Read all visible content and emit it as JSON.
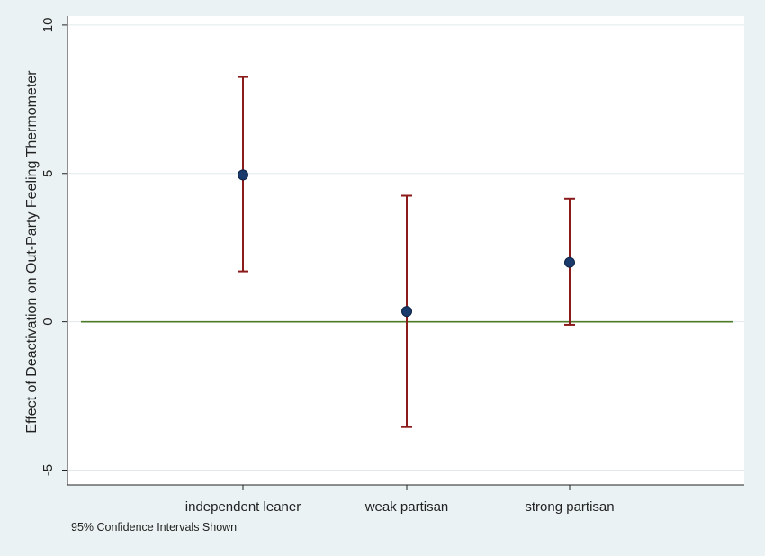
{
  "chart_data": {
    "type": "scatter",
    "categories": [
      "independent leaner",
      "weak partisan",
      "strong partisan"
    ],
    "series": [
      {
        "points": [
          {
            "category": "independent leaner",
            "estimate": 4.95,
            "ci_low": 1.7,
            "ci_high": 8.25
          },
          {
            "category": "weak partisan",
            "estimate": 0.35,
            "ci_low": -3.55,
            "ci_high": 4.25
          },
          {
            "category": "strong partisan",
            "estimate": 2.0,
            "ci_low": -0.1,
            "ci_high": 4.15
          }
        ]
      }
    ],
    "reference_line": {
      "y": 0,
      "color": "#4e7a27"
    },
    "ylabel": "Effect of Deactivation on Out-Party Feeling Thermometer",
    "xlabel": "",
    "note": "95% Confidence Intervals Shown",
    "ylim": [
      -5.5,
      10.3
    ],
    "yticks": [
      -5,
      0,
      5,
      10
    ],
    "grid": true,
    "colors": {
      "background": "#eaf2f3",
      "plot_background": "#ffffff",
      "ci_bar": "#8b1a1a",
      "marker": "#1a3a6b",
      "grid": "#e1eaeb"
    }
  }
}
